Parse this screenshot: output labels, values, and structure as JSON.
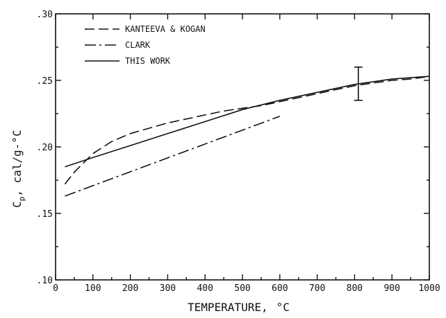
{
  "chart_data": {
    "type": "line",
    "title": "",
    "xlabel": "TEMPERATURE,",
    "xlabel_unit": "°C",
    "ylabel": "C",
    "ylabel_sub": "p",
    "ylabel_rest": ",  cal/g-",
    "ylabel_unit": "°C",
    "xlim": [
      0,
      1000
    ],
    "ylim": [
      0.1,
      0.3
    ],
    "x_ticks": [
      0,
      100,
      200,
      300,
      400,
      500,
      600,
      700,
      800,
      900,
      1000
    ],
    "x_tick_labels": [
      "0",
      "100",
      "200",
      "300",
      "400",
      "500",
      "600",
      "700",
      "800",
      "900",
      "1000"
    ],
    "y_ticks": [
      0.1,
      0.15,
      0.2,
      0.25,
      0.3
    ],
    "y_tick_labels": [
      ".10",
      ".15",
      ".20",
      ".25",
      ".30"
    ],
    "grid": false,
    "legend_position": "top-left",
    "series": [
      {
        "name": "KANTEEVA & KOGAN",
        "dash": "dashed",
        "x": [
          25,
          50,
          100,
          150,
          200,
          250,
          300,
          350,
          400,
          450,
          500,
          550,
          600,
          650,
          700,
          750,
          800,
          850,
          900,
          950,
          1000
        ],
        "y": [
          0.172,
          0.181,
          0.195,
          0.204,
          0.21,
          0.214,
          0.218,
          0.221,
          0.224,
          0.227,
          0.229,
          0.231,
          0.234,
          0.237,
          0.24,
          0.243,
          0.246,
          0.248,
          0.25,
          0.251,
          0.253
        ]
      },
      {
        "name": "CLARK",
        "dash": "dashdot",
        "x": [
          25,
          600
        ],
        "y": [
          0.163,
          0.223
        ]
      },
      {
        "name": "THIS WORK",
        "dash": "solid",
        "x": [
          25,
          100,
          200,
          300,
          400,
          500,
          600,
          700,
          800,
          900,
          1000
        ],
        "y": [
          0.185,
          0.192,
          0.201,
          0.21,
          0.219,
          0.228,
          0.235,
          0.241,
          0.247,
          0.251,
          0.253
        ]
      }
    ],
    "error_bar": {
      "x": 810,
      "y_low": 0.235,
      "y_high": 0.26
    }
  }
}
